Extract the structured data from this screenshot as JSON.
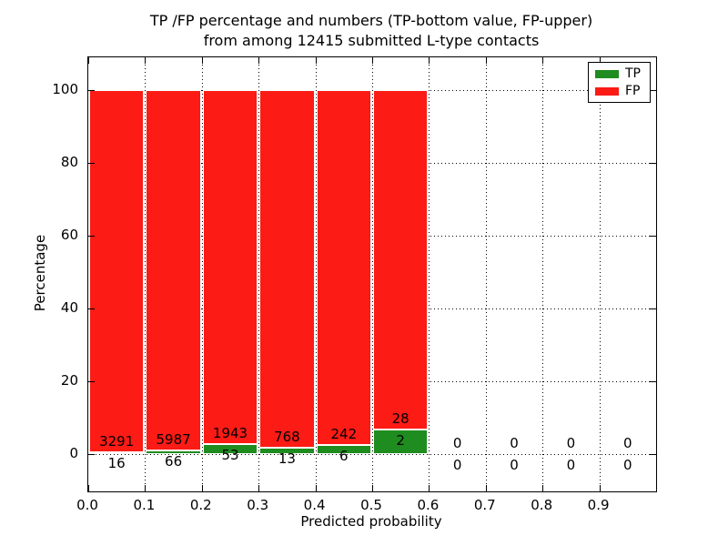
{
  "title": {
    "line1": "TP /FP percentage and numbers (TP-bottom value, FP-upper)",
    "line2": "from among 12415 submitted L-type contacts"
  },
  "chart_data": {
    "type": "bar",
    "stacked": true,
    "title": "TP /FP percentage and numbers (TP-bottom value, FP-upper) from among 12415 submitted L-type contacts",
    "total_submitted_contacts": 12415,
    "xlabel": "Predicted probability",
    "ylabel": "Percentage",
    "xlim": [
      0.0,
      1.0
    ],
    "ylim": [
      -10.4,
      109.0
    ],
    "x_tick_labels": [
      "0.0",
      "0.1",
      "0.2",
      "0.3",
      "0.4",
      "0.5",
      "0.6",
      "0.7",
      "0.8",
      "0.9"
    ],
    "y_tick_values": [
      0,
      20,
      40,
      60,
      80,
      100
    ],
    "grid": "dotted",
    "legend_position": "upper right",
    "bar_bin_width": 0.1,
    "bar_edge_color": "#ffffff",
    "series": [
      {
        "name": "TP",
        "color": "#1f8c1f",
        "stack_position": "bottom"
      },
      {
        "name": "FP",
        "color": "#fc1b15",
        "stack_position": "top"
      }
    ],
    "bins": [
      {
        "x_start": 0.0,
        "x_end": 0.1,
        "tp": 16,
        "fp": 3291
      },
      {
        "x_start": 0.1,
        "x_end": 0.2,
        "tp": 66,
        "fp": 5987
      },
      {
        "x_start": 0.2,
        "x_end": 0.3,
        "tp": 53,
        "fp": 1943
      },
      {
        "x_start": 0.3,
        "x_end": 0.4,
        "tp": 13,
        "fp": 768
      },
      {
        "x_start": 0.4,
        "x_end": 0.5,
        "tp": 6,
        "fp": 242
      },
      {
        "x_start": 0.5,
        "x_end": 0.6,
        "tp": 2,
        "fp": 28
      },
      {
        "x_start": 0.6,
        "x_end": 0.7,
        "tp": 0,
        "fp": 0
      },
      {
        "x_start": 0.7,
        "x_end": 0.8,
        "tp": 0,
        "fp": 0
      },
      {
        "x_start": 0.8,
        "x_end": 0.9,
        "tp": 0,
        "fp": 0
      },
      {
        "x_start": 0.9,
        "x_end": 1.0,
        "tp": 0,
        "fp": 0
      }
    ]
  }
}
